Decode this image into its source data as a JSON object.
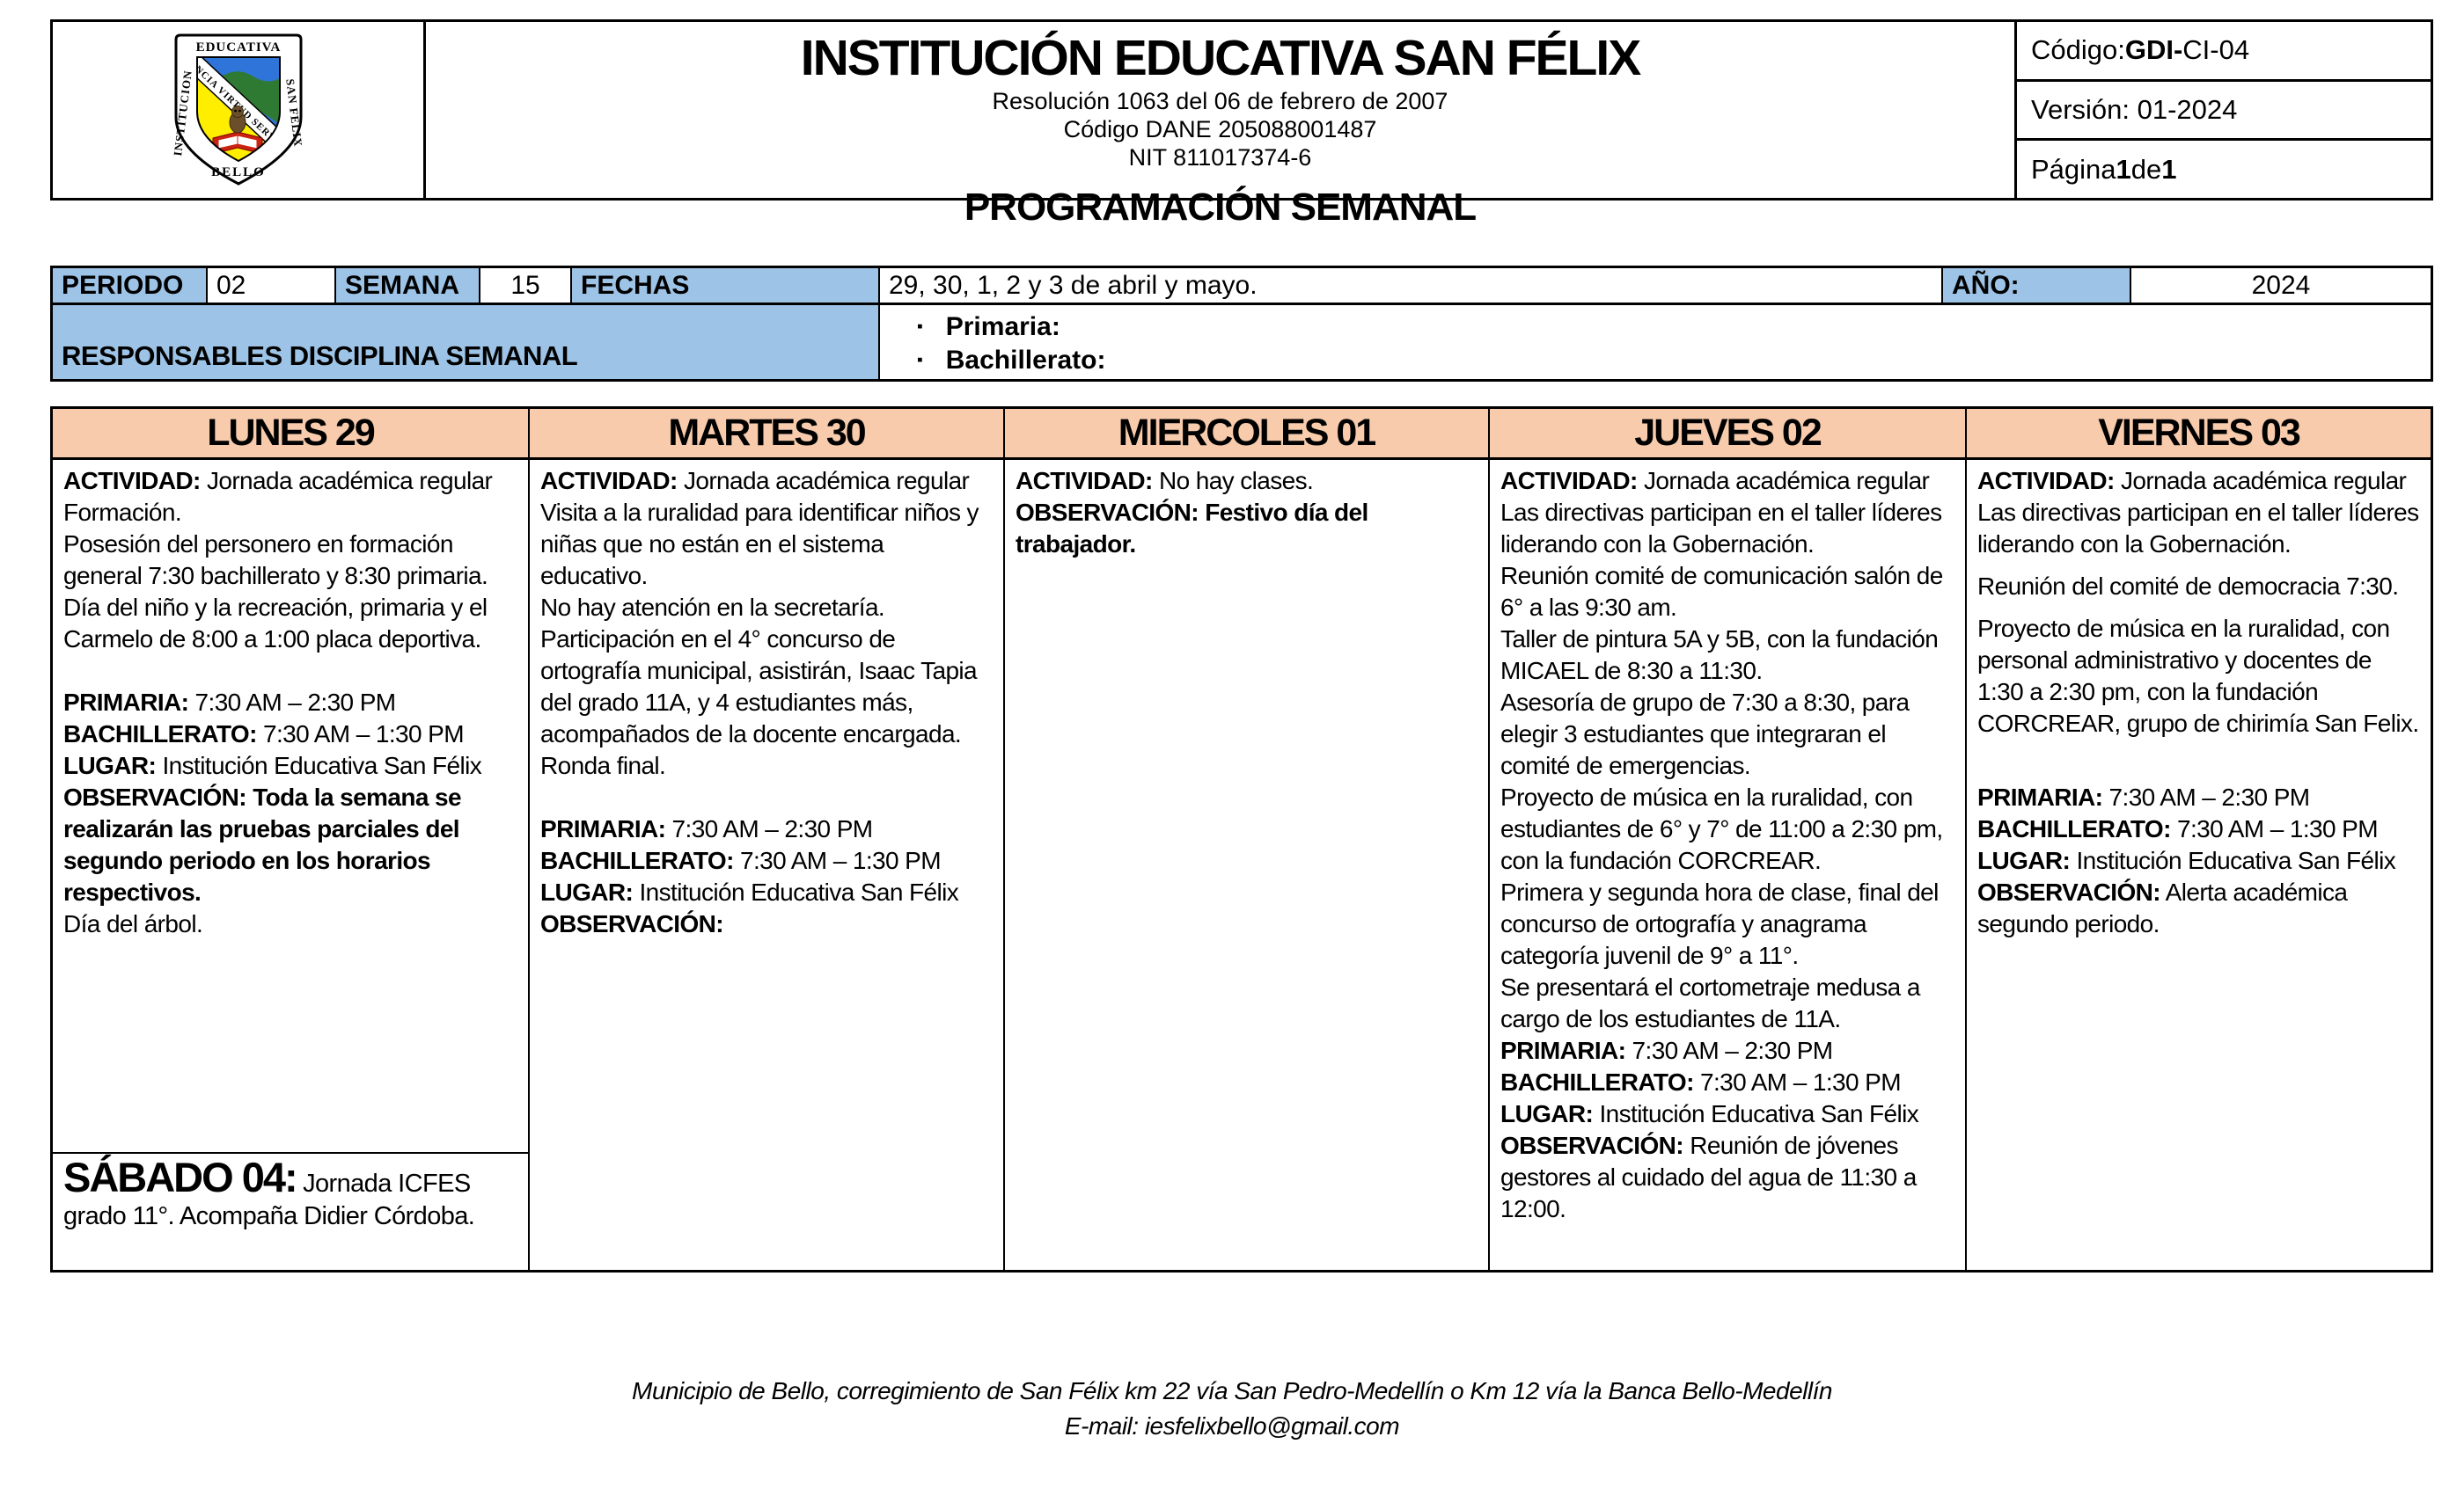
{
  "colors": {
    "label_fill": "#9DC3E6",
    "day_header_fill": "#F7CBAC",
    "shield_blue": "#2E74D9",
    "shield_green": "#2F7A33",
    "shield_yellow": "#FFEE00",
    "book_red": "#CC2211"
  },
  "logo": {
    "top": "EDUCATIVA",
    "left": "INSTITUCION",
    "right": "SAN FELIX",
    "bottom": "BELLO",
    "banner": "CIENCIA VIRTUD SERVICIO"
  },
  "header": {
    "title": "INSTITUCIÓN EDUCATIVA SAN FÉLIX",
    "subtitle_lines": [
      "Resolución 1063 del 06 de febrero de 2007",
      "Código DANE 205088001487",
      "NIT 811017374-6"
    ],
    "doc_title": "PROGRAMACIÓN SEMANAL",
    "meta": {
      "codigo_prefix": "Código: ",
      "codigo_bold": "GDI-",
      "codigo_rest": "CI-04",
      "version": "Versión: 01-2024",
      "pagina_prefix": "Página ",
      "pagina_num": "1",
      "pagina_mid": " de ",
      "pagina_total": "1"
    }
  },
  "period": {
    "periodo_label": "PERIODO",
    "periodo_value": "02",
    "semana_label": "SEMANA",
    "semana_value": "15",
    "fechas_label": "FECHAS",
    "fechas_value": "29, 30, 1, 2 y 3 de abril y mayo.",
    "anio_label": "AÑO:",
    "anio_value": "2024",
    "responsables_label": "RESPONSABLES DISCIPLINA SEMANAL",
    "responsables_items": [
      "Primaria:",
      "Bachillerato:"
    ]
  },
  "days": [
    {
      "title": "LUNES 29",
      "paragraphs": [
        {
          "runs": [
            {
              "t": "ACTIVIDAD:",
              "b": 1
            },
            {
              "t": " Jornada académica regular"
            }
          ]
        },
        {
          "runs": [
            {
              "t": "Formación."
            }
          ]
        },
        {
          "runs": [
            {
              "t": "Posesión del personero en formación general 7:30 bachillerato y 8:30 primaria."
            }
          ]
        },
        {
          "runs": [
            {
              "t": "Día del niño y la recreación, primaria y el Carmelo de 8:00 a 1:00 placa deportiva."
            }
          ]
        },
        {
          "runs": []
        },
        {
          "runs": [
            {
              "t": "PRIMARIA:",
              "b": 1
            },
            {
              "t": " 7:30 AM – 2:30 PM"
            }
          ]
        },
        {
          "runs": [
            {
              "t": "BACHILLERATO:",
              "b": 1
            },
            {
              "t": " 7:30 AM – 1:30 PM"
            }
          ]
        },
        {
          "runs": [
            {
              "t": "LUGAR:",
              "b": 1
            },
            {
              "t": " Institución Educativa San Félix"
            }
          ]
        },
        {
          "runs": [
            {
              "t": "OBSERVACIÓN: Toda la semana se realizarán las pruebas parciales del segundo periodo en los horarios respectivos.",
              "b": 1
            }
          ]
        },
        {
          "runs": [
            {
              "t": "Día del árbol."
            }
          ]
        }
      ],
      "saturday": {
        "title": "SÁBADO 04:",
        "text": " Jornada ICFES grado 11°. Acompaña Didier Córdoba."
      }
    },
    {
      "title": "MARTES 30",
      "paragraphs": [
        {
          "runs": [
            {
              "t": "ACTIVIDAD:",
              "b": 1
            },
            {
              "t": " Jornada académica regular"
            }
          ]
        },
        {
          "runs": [
            {
              "t": "Visita a la ruralidad para identificar niños y niñas que no están en el sistema educativo."
            }
          ]
        },
        {
          "runs": [
            {
              "t": "No hay atención en la secretaría."
            }
          ]
        },
        {
          "runs": [
            {
              "t": "Participación en el 4° concurso de ortografía municipal, asistirán, Isaac Tapia del grado 11A, y 4 estudiantes más, acompañados de la docente encargada. Ronda final."
            }
          ]
        },
        {
          "runs": []
        },
        {
          "runs": [
            {
              "t": "PRIMARIA:",
              "b": 1
            },
            {
              "t": " 7:30 AM – 2:30 PM"
            }
          ]
        },
        {
          "runs": [
            {
              "t": "BACHILLERATO:",
              "b": 1
            },
            {
              "t": " 7:30 AM – 1:30 PM"
            }
          ]
        },
        {
          "runs": [
            {
              "t": "LUGAR:",
              "b": 1
            },
            {
              "t": " Institución Educativa San Félix"
            }
          ]
        },
        {
          "runs": [
            {
              "t": "OBSERVACIÓN:",
              "b": 1
            }
          ]
        }
      ]
    },
    {
      "title": "MIERCOLES 01",
      "paragraphs": [
        {
          "runs": [
            {
              "t": "ACTIVIDAD:",
              "b": 1
            },
            {
              "t": "  No hay clases."
            }
          ]
        },
        {
          "runs": [
            {
              "t": "OBSERVACIÓN: Festivo día del trabajador.",
              "b": 1
            }
          ]
        }
      ]
    },
    {
      "title": "JUEVES 02",
      "paragraphs": [
        {
          "runs": [
            {
              "t": "ACTIVIDAD:",
              "b": 1
            },
            {
              "t": " Jornada académica regular"
            }
          ]
        },
        {
          "runs": [
            {
              "t": "Las directivas participan en el taller líderes liderando con la Gobernación."
            }
          ]
        },
        {
          "runs": [
            {
              "t": "Reunión comité de comunicación salón de 6° a las 9:30 am."
            }
          ]
        },
        {
          "runs": [
            {
              "t": "Taller de pintura 5A y 5B, con la fundación MICAEL de 8:30 a 11:30."
            }
          ]
        },
        {
          "runs": [
            {
              "t": "Asesoría de grupo de 7:30 a 8:30, para elegir 3 estudiantes que integraran el comité de emergencias."
            }
          ]
        },
        {
          "runs": [
            {
              "t": "Proyecto de música en la ruralidad, con estudiantes de 6° y 7° de 11:00 a 2:30 pm, con la fundación CORCREAR."
            }
          ]
        },
        {
          "runs": [
            {
              "t": "Primera y segunda hora de clase, final del concurso de ortografía y anagrama categoría juvenil de 9° a 11°."
            }
          ]
        },
        {
          "runs": [
            {
              "t": "Se presentará el cortometraje medusa a cargo de los estudiantes de 11A."
            }
          ]
        },
        {
          "runs": [
            {
              "t": "PRIMARIA:",
              "b": 1
            },
            {
              "t": " 7:30 AM – 2:30 PM"
            }
          ]
        },
        {
          "runs": [
            {
              "t": "BACHILLERATO:",
              "b": 1
            },
            {
              "t": " 7:30 AM – 1:30 PM"
            }
          ]
        },
        {
          "runs": [
            {
              "t": "LUGAR:",
              "b": 1
            },
            {
              "t": " Institución Educativa San Félix"
            }
          ]
        },
        {
          "runs": [
            {
              "t": "OBSERVACIÓN:",
              "b": 1
            },
            {
              "t": " Reunión de jóvenes gestores al cuidado del agua de 11:30 a 12:00."
            }
          ]
        }
      ]
    },
    {
      "title": "VIERNES 03",
      "paragraphs": [
        {
          "runs": [
            {
              "t": "ACTIVIDAD:",
              "b": 1
            },
            {
              "t": " Jornada académica regular"
            }
          ]
        },
        {
          "runs": [
            {
              "t": "Las directivas participan en el taller líderes liderando con la Gobernación."
            }
          ],
          "gap": 1
        },
        {
          "runs": [
            {
              "t": "Reunión del comité de democracia 7:30."
            }
          ],
          "gap": 1
        },
        {
          "runs": [
            {
              "t": "Proyecto de música en la ruralidad, con personal administrativo y docentes de 1:30 a 2:30 pm, con la fundación CORCREAR, grupo de chirimía San Felix."
            }
          ],
          "gap": 1
        },
        {
          "runs": []
        },
        {
          "runs": [
            {
              "t": "PRIMARIA:",
              "b": 1
            },
            {
              "t": " 7:30 AM – 2:30 PM"
            }
          ]
        },
        {
          "runs": [
            {
              "t": "BACHILLERATO:",
              "b": 1
            },
            {
              "t": " 7:30 AM – 1:30 PM"
            }
          ]
        },
        {
          "runs": [
            {
              "t": "LUGAR:",
              "b": 1
            },
            {
              "t": " Institución Educativa San Félix"
            }
          ]
        },
        {
          "runs": [
            {
              "t": "OBSERVACIÓN:",
              "b": 1
            },
            {
              "t": " Alerta académica segundo periodo."
            }
          ]
        }
      ]
    }
  ],
  "footer": {
    "line1": "Municipio de Bello, corregimiento de San Félix km 22 vía San Pedro-Medellín o Km 12 vía la Banca Bello-Medellín",
    "line2": "E-mail: iesfelixbello@gmail.com"
  }
}
